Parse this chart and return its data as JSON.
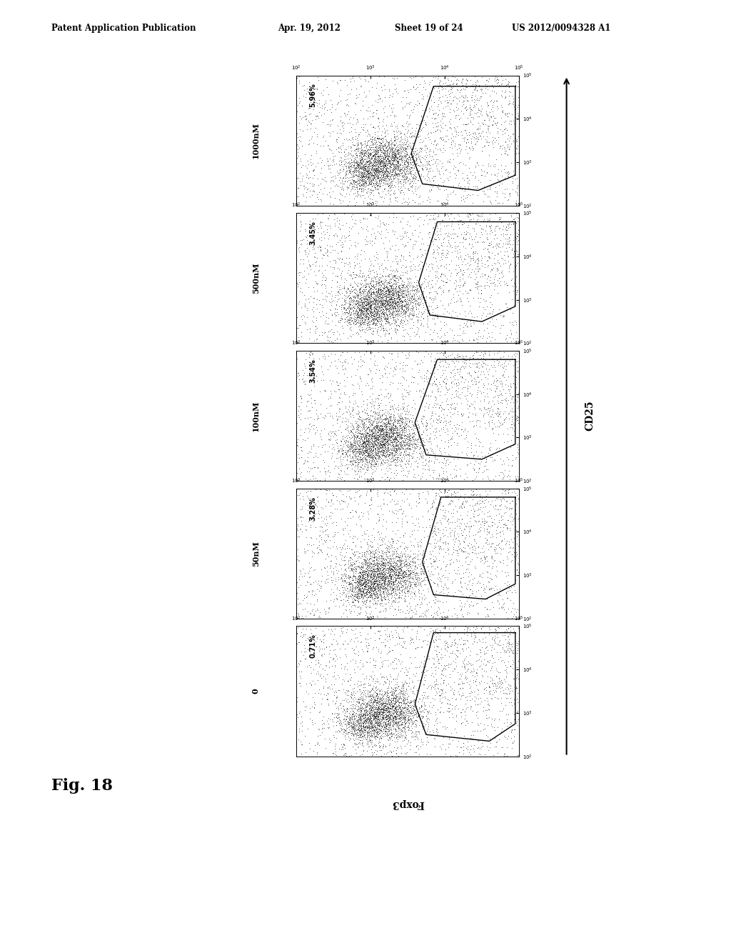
{
  "fig_width": 10.24,
  "fig_height": 13.2,
  "bg_color": "#ffffff",
  "header_text": "Patent Application Publication",
  "header_date": "Apr. 19, 2012",
  "header_sheet": "Sheet 19 of 24",
  "header_patent": "US 2012/0094328 A1",
  "fig_label": "Fig. 18",
  "panels": [
    {
      "label": "0",
      "percentage": "0.71%"
    },
    {
      "label": "50nM",
      "percentage": "3.28%"
    },
    {
      "label": "100nM",
      "percentage": "3.54%"
    },
    {
      "label": "500nM",
      "percentage": "3.45%"
    },
    {
      "label": "1000nM",
      "percentage": "5.96%"
    }
  ],
  "x_axis_label": "Foxp3",
  "y_axis_label": "CD25",
  "dot_color": "#111111",
  "gate_color": "#000000",
  "panel_bg": "#ffffff"
}
